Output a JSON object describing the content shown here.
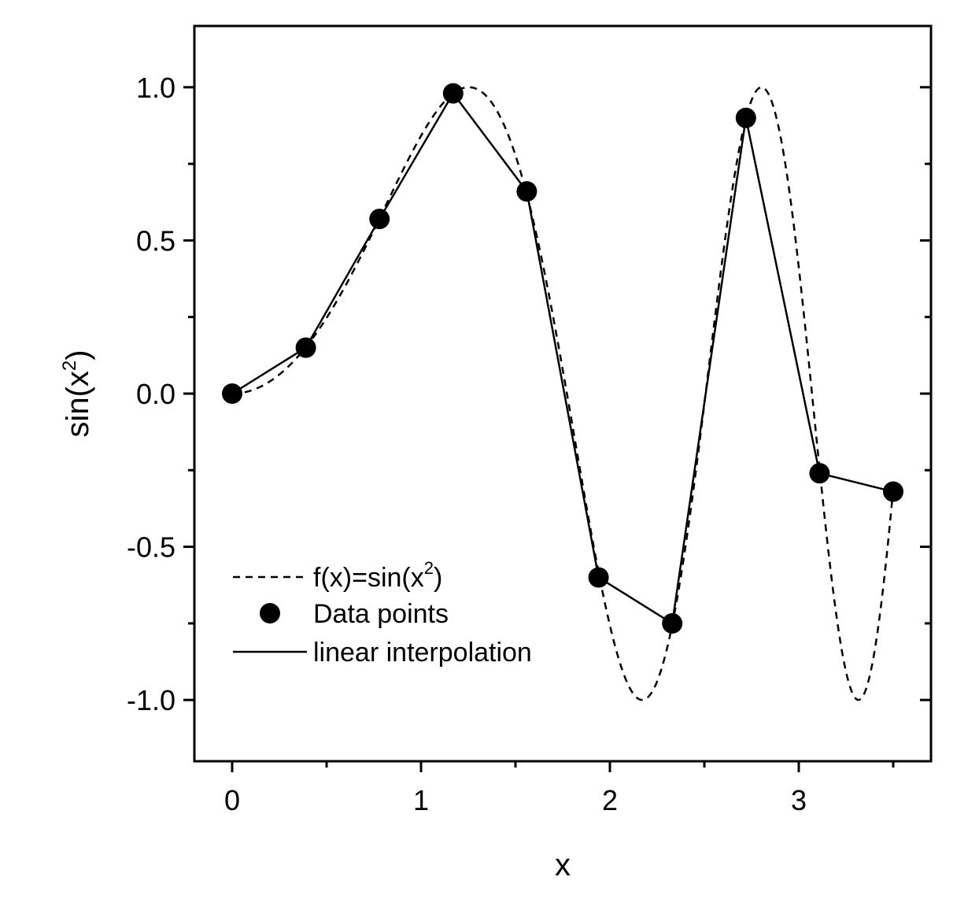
{
  "chart_data": {
    "type": "line",
    "title": "",
    "xlabel": "x",
    "ylabel": {
      "base": "sin(x",
      "sup": "2",
      "close": ")"
    },
    "xlim": [
      -0.2,
      3.7
    ],
    "ylim": [
      -1.2,
      1.2
    ],
    "x_ticks": [
      0,
      1,
      2,
      3
    ],
    "x_tick_labels": [
      "0",
      "1",
      "2",
      "3"
    ],
    "x_minor_ticks": [
      0.5,
      1.5,
      2.5,
      3.5
    ],
    "y_ticks": [
      -1.0,
      -0.5,
      0.0,
      0.5,
      1.0
    ],
    "y_tick_labels": [
      "-1.0",
      "-0.5",
      "0.0",
      "0.5",
      "1.0"
    ],
    "y_minor_ticks": [
      -0.75,
      -0.25,
      0.25,
      0.75
    ],
    "grid": false,
    "legend_position": "bottom-left",
    "series": [
      {
        "name": "f(x)=sin(x^2)",
        "kind": "function-dashed",
        "function": "sin(x^2)",
        "x_range": [
          0,
          3.5
        ]
      },
      {
        "name": "Data points",
        "kind": "markers",
        "x": [
          0,
          0.39,
          0.78,
          1.17,
          1.56,
          1.94,
          2.33,
          2.72,
          3.11,
          3.5
        ],
        "y": [
          0.0,
          0.15,
          0.57,
          0.98,
          0.66,
          -0.6,
          -0.75,
          0.9,
          -0.26,
          -0.32
        ]
      },
      {
        "name": "linear interpolation",
        "kind": "line-solid",
        "x": [
          0,
          0.39,
          0.78,
          1.17,
          1.56,
          1.94,
          2.33,
          2.72,
          3.11,
          3.5
        ],
        "y": [
          0.0,
          0.15,
          0.57,
          0.98,
          0.66,
          -0.6,
          -0.75,
          0.9,
          -0.26,
          -0.32
        ]
      }
    ],
    "legend": {
      "function_label": {
        "base": "f(x)=sin(x",
        "sup": "2",
        "close": ")"
      },
      "points_label": "Data points",
      "line_label": "linear interpolation"
    }
  }
}
